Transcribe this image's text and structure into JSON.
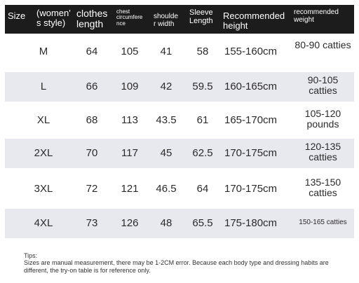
{
  "header": {
    "size": "Size",
    "style": "(women'\ns style)",
    "clothes_length": "clothes\nlength",
    "chest": "chest\ncircumfere\nnce",
    "shoulder": "shoulde\nr width",
    "sleeve": "Sleeve\nLength",
    "recommended_height": "Recommended\nheight",
    "recommended_weight": "recommended\nweight"
  },
  "rows": [
    {
      "size": "M",
      "length": "64",
      "chest": "105",
      "shoulder": "41",
      "sleeve": "58",
      "height": "155-160cm",
      "weight": "80-90 catties"
    },
    {
      "size": "L",
      "length": "66",
      "chest": "109",
      "shoulder": "42",
      "sleeve": "59.5",
      "height": "160-165cm",
      "weight": "90-105 catties"
    },
    {
      "size": "XL",
      "length": "68",
      "chest": "113",
      "shoulder": "43.5",
      "sleeve": "61",
      "height": "165-170cm",
      "weight": "105-120 pounds"
    },
    {
      "size": "2XL",
      "length": "70",
      "chest": "117",
      "shoulder": "45",
      "sleeve": "62.5",
      "height": "170-175cm",
      "weight": "120-135 catties"
    },
    {
      "size": "3XL",
      "length": "72",
      "chest": "121",
      "shoulder": "46.5",
      "sleeve": "64",
      "height": "170-175cm",
      "weight": "135-150 catties"
    },
    {
      "size": "4XL",
      "length": "73",
      "chest": "126",
      "shoulder": "48",
      "sleeve": "65.5",
      "height": "175-180cm",
      "weight": "150-165 catties"
    }
  ],
  "tips": {
    "title": "Tips:",
    "text": "Sizes are manual measurement, there may be 1-2CM error. Because each body type and dressing habits are different, the try-on table is for reference only."
  },
  "colors": {
    "header_bg": "#1c1c1c",
    "row_shade": "#e8e8ef"
  }
}
